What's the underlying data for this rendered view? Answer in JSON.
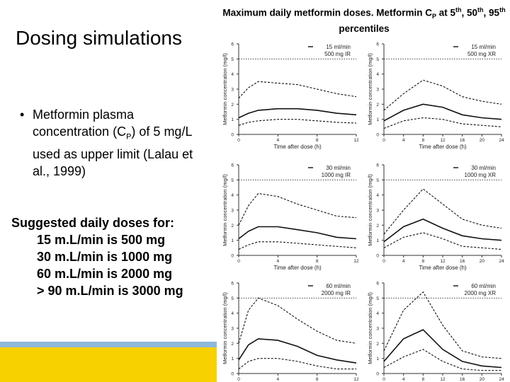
{
  "slide": {
    "title": "Dosing simulations",
    "bullet": {
      "marker": "•",
      "text_before": "Metformin plasma concentration (C",
      "subscript": "P",
      "text_after": ") of 5 mg/L used as upper limit (Lalau et al., 1999)"
    },
    "suggested": {
      "heading": "Suggested daily doses for:",
      "lines": [
        "15 m.L/min is 500 mg",
        "30 m.L/min is 1000 mg",
        "60 m.L/min is 2000 mg",
        "> 90 m.L/min is 3000 mg"
      ]
    },
    "colors": {
      "band_blue": "#8eb9da",
      "band_yellow": "#f7d100"
    }
  },
  "chart_title": {
    "part1": "Maximum daily metformin doses. Metformin C",
    "sub": "P",
    "part2": " at 5",
    "sup1": "th",
    "part3": ", 50",
    "sup2": "th",
    "part4": ", 95",
    "sup3": "th",
    "part5": " percentiles"
  },
  "chart_data": [
    {
      "type": "line",
      "legend": [
        "15 ml/min",
        "500 mg IR"
      ],
      "ylabel": "Metformin concentration (mg/l)",
      "xlabel": "Time after dose (h)",
      "xlim": [
        0,
        12
      ],
      "xticks": [
        0,
        4,
        8,
        12
      ],
      "ylim": [
        0,
        6
      ],
      "yticks": [
        0,
        1,
        2,
        3,
        4,
        5,
        6
      ],
      "reference_line": 5,
      "x": [
        0,
        1,
        2,
        4,
        6,
        8,
        10,
        12
      ],
      "series": [
        {
          "values": [
            2.4,
            3.1,
            3.5,
            3.4,
            3.3,
            3.0,
            2.7,
            2.5
          ],
          "style": "dashed"
        },
        {
          "values": [
            1.1,
            1.4,
            1.6,
            1.7,
            1.7,
            1.6,
            1.4,
            1.3
          ],
          "style": "solid"
        },
        {
          "values": [
            0.6,
            0.8,
            0.9,
            1.0,
            1.0,
            0.9,
            0.8,
            0.75
          ],
          "style": "dashed"
        }
      ]
    },
    {
      "type": "line",
      "legend": [
        "15 ml/min",
        "500 mg XR"
      ],
      "ylabel": "Metformin concentration (mg/l)",
      "xlabel": "Time after dose (h)",
      "xlim": [
        0,
        24
      ],
      "xticks": [
        0,
        4,
        8,
        12,
        16,
        20,
        24
      ],
      "ylim": [
        0,
        6
      ],
      "yticks": [
        0,
        1,
        2,
        3,
        4,
        5,
        6
      ],
      "reference_line": 5,
      "x": [
        0,
        4,
        8,
        12,
        16,
        20,
        24
      ],
      "series": [
        {
          "values": [
            1.6,
            2.7,
            3.6,
            3.2,
            2.5,
            2.2,
            2.0
          ],
          "style": "dashed"
        },
        {
          "values": [
            0.9,
            1.6,
            2.0,
            1.8,
            1.3,
            1.1,
            1.0
          ],
          "style": "solid"
        },
        {
          "values": [
            0.4,
            0.9,
            1.1,
            1.0,
            0.7,
            0.6,
            0.5
          ],
          "style": "dashed"
        }
      ]
    },
    {
      "type": "line",
      "legend": [
        "30 ml/min",
        "1000 mg IR"
      ],
      "ylabel": "Metformin concentration (mg/l)",
      "xlabel": "Time after dose (h)",
      "xlim": [
        0,
        12
      ],
      "xticks": [
        0,
        4,
        8,
        12
      ],
      "ylim": [
        0,
        6
      ],
      "yticks": [
        0,
        1,
        2,
        3,
        4,
        5,
        6
      ],
      "reference_line": 5,
      "x": [
        0,
        1,
        2,
        4,
        6,
        8,
        10,
        12
      ],
      "series": [
        {
          "values": [
            2.0,
            3.3,
            4.1,
            3.9,
            3.4,
            3.0,
            2.6,
            2.5
          ],
          "style": "dashed"
        },
        {
          "values": [
            1.1,
            1.6,
            1.9,
            1.9,
            1.7,
            1.5,
            1.2,
            1.1
          ],
          "style": "solid"
        },
        {
          "values": [
            0.4,
            0.7,
            0.9,
            0.9,
            0.8,
            0.7,
            0.6,
            0.5
          ],
          "style": "dashed"
        }
      ]
    },
    {
      "type": "line",
      "legend": [
        "30 ml/min",
        "1000 mg XR"
      ],
      "ylabel": "Metformin concentration (mg/l)",
      "xlabel": "Time after dose (h)",
      "xlim": [
        0,
        24
      ],
      "xticks": [
        0,
        4,
        8,
        12,
        16,
        20,
        24
      ],
      "ylim": [
        0,
        6
      ],
      "yticks": [
        0,
        1,
        2,
        3,
        4,
        5,
        6
      ],
      "reference_line": 5,
      "x": [
        0,
        4,
        8,
        12,
        16,
        20,
        24
      ],
      "series": [
        {
          "values": [
            1.4,
            3.0,
            4.4,
            3.4,
            2.4,
            2.0,
            1.8
          ],
          "style": "dashed"
        },
        {
          "values": [
            0.9,
            1.9,
            2.4,
            1.8,
            1.3,
            1.1,
            1.0
          ],
          "style": "solid"
        },
        {
          "values": [
            0.5,
            1.2,
            1.5,
            1.1,
            0.6,
            0.5,
            0.4
          ],
          "style": "dashed"
        }
      ]
    },
    {
      "type": "line",
      "legend": [
        "60 ml/min",
        "2000 mg IR"
      ],
      "ylabel": "Metformin concentration (mg/l)",
      "xlabel": "",
      "xlim": [
        0,
        12
      ],
      "xticks": [
        0,
        4,
        8,
        12
      ],
      "ylim": [
        0,
        6
      ],
      "yticks": [
        0,
        1,
        2,
        3,
        4,
        5,
        6
      ],
      "reference_line": 5,
      "x": [
        0,
        1,
        2,
        4,
        6,
        8,
        10,
        12
      ],
      "series": [
        {
          "values": [
            2.0,
            4.2,
            5.0,
            4.5,
            3.6,
            2.8,
            2.2,
            2.0
          ],
          "style": "dashed"
        },
        {
          "values": [
            0.9,
            1.9,
            2.3,
            2.2,
            1.8,
            1.2,
            0.9,
            0.7
          ],
          "style": "solid"
        },
        {
          "values": [
            0.3,
            0.8,
            1.0,
            1.0,
            0.8,
            0.5,
            0.3,
            0.3
          ],
          "style": "dashed"
        }
      ]
    },
    {
      "type": "line",
      "legend": [
        "60 ml/min",
        "2000 mg XR"
      ],
      "ylabel": "Metformin concentration (mg/l)",
      "xlabel": "",
      "xlim": [
        0,
        24
      ],
      "xticks": [
        0,
        4,
        8,
        12,
        16,
        20,
        24
      ],
      "ylim": [
        0,
        6
      ],
      "yticks": [
        0,
        1,
        2,
        3,
        4,
        5,
        6
      ],
      "reference_line": 5,
      "x": [
        0,
        4,
        8,
        12,
        16,
        20,
        24
      ],
      "series": [
        {
          "values": [
            1.5,
            4.2,
            5.4,
            3.2,
            1.5,
            1.1,
            1.0
          ],
          "style": "dashed"
        },
        {
          "values": [
            0.8,
            2.3,
            2.9,
            1.6,
            0.8,
            0.5,
            0.4
          ],
          "style": "solid"
        },
        {
          "values": [
            0.4,
            1.1,
            1.6,
            0.8,
            0.3,
            0.2,
            0.2
          ],
          "style": "dashed"
        }
      ]
    }
  ]
}
